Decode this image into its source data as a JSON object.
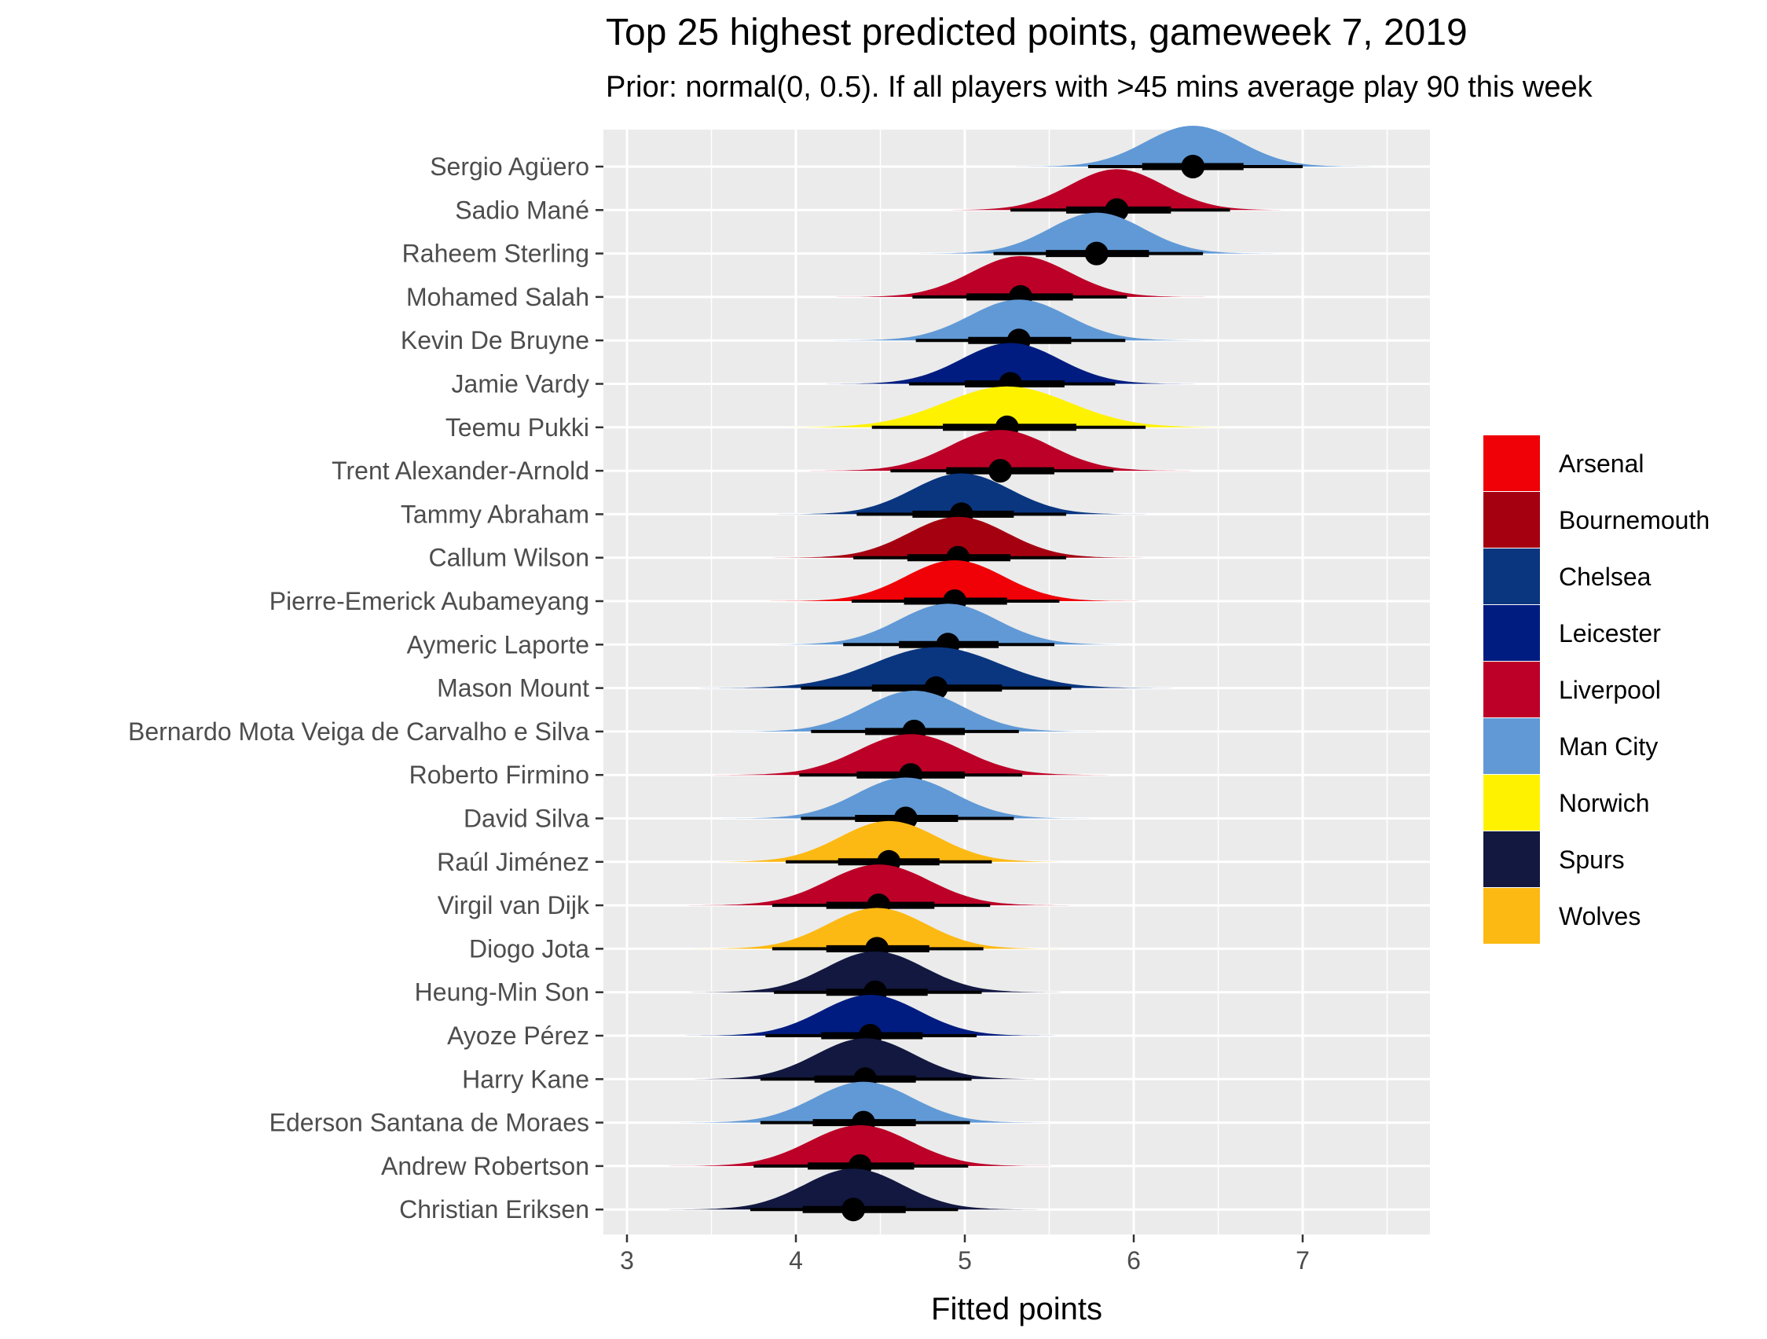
{
  "chart_data": {
    "type": "halfeye",
    "title": "Top 25 highest predicted points, gameweek 7, 2019",
    "subtitle": "Prior: normal(0, 0.5). If all players with >45 mins average play 90 this week",
    "xlabel": "Fitted points",
    "ylabel": "",
    "xlim": [
      2.98,
      7.75
    ],
    "xticks": [
      3,
      4,
      5,
      6,
      7
    ],
    "grid": true,
    "legend": {
      "position": "right",
      "entries": [
        {
          "team": "Arsenal",
          "color": "#EF0107"
        },
        {
          "team": "Bournemouth",
          "color": "#A50010"
        },
        {
          "team": "Chelsea",
          "color": "#0A3680"
        },
        {
          "team": "Leicester",
          "color": "#001C80"
        },
        {
          "team": "Liverpool",
          "color": "#BC0027"
        },
        {
          "team": "Man City",
          "color": "#6099D6"
        },
        {
          "team": "Norwich",
          "color": "#FFF200"
        },
        {
          "team": "Spurs",
          "color": "#121840"
        },
        {
          "team": "Wolves",
          "color": "#FDB913"
        }
      ]
    },
    "players": [
      {
        "name": "Sergio Agüero",
        "team": "Man City",
        "median": 6.35,
        "inner": [
          6.05,
          6.65
        ],
        "outer": [
          5.73,
          7.0
        ],
        "sd": 0.28
      },
      {
        "name": "Sadio Mané",
        "team": "Liverpool",
        "median": 5.9,
        "inner": [
          5.6,
          6.22
        ],
        "outer": [
          5.27,
          6.57
        ],
        "sd": 0.28
      },
      {
        "name": "Raheem Sterling",
        "team": "Man City",
        "median": 5.78,
        "inner": [
          5.48,
          6.09
        ],
        "outer": [
          5.17,
          6.41
        ],
        "sd": 0.28
      },
      {
        "name": "Mohamed Salah",
        "team": "Liverpool",
        "median": 5.33,
        "inner": [
          5.01,
          5.64
        ],
        "outer": [
          4.69,
          5.96
        ],
        "sd": 0.29
      },
      {
        "name": "Kevin De Bruyne",
        "team": "Man City",
        "median": 5.32,
        "inner": [
          5.02,
          5.63
        ],
        "outer": [
          4.71,
          5.95
        ],
        "sd": 0.29
      },
      {
        "name": "Jamie Vardy",
        "team": "Leicester",
        "median": 5.27,
        "inner": [
          5.0,
          5.59
        ],
        "outer": [
          4.67,
          5.89
        ],
        "sd": 0.29
      },
      {
        "name": "Teemu Pukki",
        "team": "Norwich",
        "median": 5.25,
        "inner": [
          4.87,
          5.66
        ],
        "outer": [
          4.45,
          6.07
        ],
        "sd": 0.37
      },
      {
        "name": "Trent Alexander-Arnold",
        "team": "Liverpool",
        "median": 5.21,
        "inner": [
          4.89,
          5.53
        ],
        "outer": [
          4.56,
          5.88
        ],
        "sd": 0.3
      },
      {
        "name": "Tammy Abraham",
        "team": "Chelsea",
        "median": 4.98,
        "inner": [
          4.69,
          5.29
        ],
        "outer": [
          4.36,
          5.6
        ],
        "sd": 0.29
      },
      {
        "name": "Callum Wilson",
        "team": "Bournemouth",
        "median": 4.96,
        "inner": [
          4.66,
          5.27
        ],
        "outer": [
          4.34,
          5.6
        ],
        "sd": 0.29
      },
      {
        "name": "Pierre-Emerick Aubameyang",
        "team": "Arsenal",
        "median": 4.94,
        "inner": [
          4.64,
          5.25
        ],
        "outer": [
          4.33,
          5.56
        ],
        "sd": 0.29
      },
      {
        "name": "Aymeric Laporte",
        "team": "Man City",
        "median": 4.9,
        "inner": [
          4.61,
          5.2
        ],
        "outer": [
          4.28,
          5.53
        ],
        "sd": 0.29
      },
      {
        "name": "Mason Mount",
        "team": "Chelsea",
        "median": 4.83,
        "inner": [
          4.45,
          5.22
        ],
        "outer": [
          4.03,
          5.63
        ],
        "sd": 0.37
      },
      {
        "name": "Bernardo Mota Veiga de Carvalho e Silva",
        "team": "Man City",
        "median": 4.7,
        "inner": [
          4.41,
          5.0
        ],
        "outer": [
          4.09,
          5.32
        ],
        "sd": 0.29
      },
      {
        "name": "Roberto Firmino",
        "team": "Liverpool",
        "median": 4.68,
        "inner": [
          4.36,
          5.0
        ],
        "outer": [
          4.02,
          5.34
        ],
        "sd": 0.31
      },
      {
        "name": "David Silva",
        "team": "Man City",
        "median": 4.65,
        "inner": [
          4.35,
          4.96
        ],
        "outer": [
          4.03,
          5.29
        ],
        "sd": 0.29
      },
      {
        "name": "Raúl Jiménez",
        "team": "Wolves",
        "median": 4.55,
        "inner": [
          4.25,
          4.85
        ],
        "outer": [
          3.94,
          5.16
        ],
        "sd": 0.29
      },
      {
        "name": "Virgil van Dijk",
        "team": "Liverpool",
        "median": 4.49,
        "inner": [
          4.18,
          4.82
        ],
        "outer": [
          3.86,
          5.15
        ],
        "sd": 0.3
      },
      {
        "name": "Diogo Jota",
        "team": "Wolves",
        "median": 4.48,
        "inner": [
          4.18,
          4.79
        ],
        "outer": [
          3.86,
          5.11
        ],
        "sd": 0.29
      },
      {
        "name": "Heung-Min Son",
        "team": "Spurs",
        "median": 4.47,
        "inner": [
          4.18,
          4.78
        ],
        "outer": [
          3.87,
          5.1
        ],
        "sd": 0.29
      },
      {
        "name": "Ayoze Pérez",
        "team": "Leicester",
        "median": 4.44,
        "inner": [
          4.15,
          4.75
        ],
        "outer": [
          3.82,
          5.07
        ],
        "sd": 0.29
      },
      {
        "name": "Harry Kane",
        "team": "Spurs",
        "median": 4.41,
        "inner": [
          4.11,
          4.71
        ],
        "outer": [
          3.79,
          5.04
        ],
        "sd": 0.29
      },
      {
        "name": "Ederson Santana de Moraes",
        "team": "Man City",
        "median": 4.4,
        "inner": [
          4.1,
          4.71
        ],
        "outer": [
          3.79,
          5.03
        ],
        "sd": 0.29
      },
      {
        "name": "Andrew Robertson",
        "team": "Liverpool",
        "median": 4.38,
        "inner": [
          4.07,
          4.7
        ],
        "outer": [
          3.75,
          5.02
        ],
        "sd": 0.3
      },
      {
        "name": "Christian Eriksen",
        "team": "Spurs",
        "median": 4.34,
        "inner": [
          4.04,
          4.65
        ],
        "outer": [
          3.73,
          4.96
        ],
        "sd": 0.29
      }
    ]
  }
}
